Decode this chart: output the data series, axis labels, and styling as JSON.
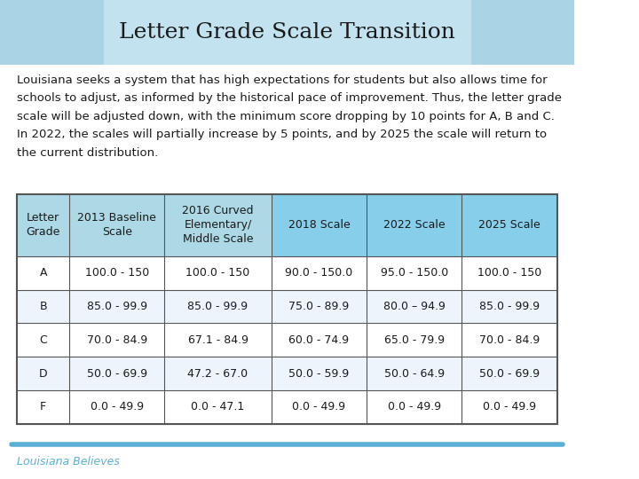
{
  "title": "Letter Grade Scale Transition",
  "footer_text": "Louisiana Believes",
  "header_bg_color": "#a8d4e6",
  "header_text_color": "#1a1a1a",
  "col_headers": [
    "Letter\nGrade",
    "2013 Baseline\nScale",
    "2016 Curved\nElementary/\nMiddle Scale",
    "2018 Scale",
    "2022 Scale",
    "2025 Scale"
  ],
  "col_header_bg": "#add8e6",
  "col_header_highlight": "#87ceeb",
  "table_data": [
    [
      "A",
      "100.0 - 150",
      "100.0 - 150",
      "90.0 - 150.0",
      "95.0 - 150.0",
      "100.0 - 150"
    ],
    [
      "B",
      "85.0 - 99.9",
      "85.0 - 99.9",
      "75.0 - 89.9",
      "80.0 – 94.9",
      "85.0 - 99.9"
    ],
    [
      "C",
      "70.0 - 84.9",
      "67.1 - 84.9",
      "60.0 - 74.9",
      "65.0 - 79.9",
      "70.0 - 84.9"
    ],
    [
      "D",
      "50.0 - 69.9",
      "47.2 - 67.0",
      "50.0 - 59.9",
      "50.0 - 64.9",
      "50.0 - 69.9"
    ],
    [
      "F",
      "0.0 - 49.9",
      "0.0 - 47.1",
      "0.0 - 49.9",
      "0.0 - 49.9",
      "0.0 - 49.9"
    ]
  ],
  "row_bg_colors": [
    "#ffffff",
    "#edf4fb",
    "#ffffff",
    "#edf4fb",
    "#ffffff"
  ],
  "table_border_color": "#555555",
  "body_font_size": 9.5,
  "footer_font_size": 9,
  "title_font_size": 18,
  "table_font_size": 9,
  "accent_line_color": "#5bafd6",
  "background_color": "#ffffff",
  "body_lines": [
    "Louisiana seeks a system that has high expectations for students but also allows time for",
    "schools to adjust, as informed by the historical pace of improvement. Thus, the letter grade",
    "scale will be adjusted down, with the minimum score dropping by 10 points for A, B and C.",
    "In 2022, the scales will partially increase by 5 points, and by 2025 the scale will return to",
    "the current distribution."
  ]
}
